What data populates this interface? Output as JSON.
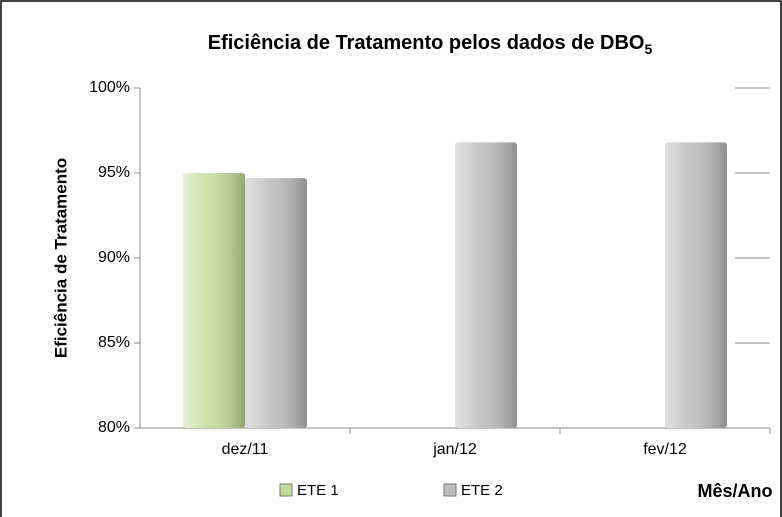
{
  "chart_data": {
    "type": "bar",
    "title": "Eficiência de Tratamento  pelos dados de DBO",
    "title_subscript": "5",
    "y_label": "Eficiência de Tratamento",
    "x_label": "Mês/Ano",
    "categories": [
      "dez/11",
      "jan/12",
      "fev/12"
    ],
    "series": [
      {
        "name": "ETE 1",
        "color": "#c4dc9a",
        "values": [
          95,
          null,
          null
        ]
      },
      {
        "name": "ETE 2",
        "color": "#bdbdbd",
        "values": [
          94.7,
          96.8,
          96.8
        ]
      }
    ],
    "ylim": [
      80,
      100
    ],
    "yticks": [
      {
        "value": 80,
        "label": "80%"
      },
      {
        "value": 85,
        "label": "85%"
      },
      {
        "value": 90,
        "label": "90%"
      },
      {
        "value": 95,
        "label": "95%"
      },
      {
        "value": 100,
        "label": "100%"
      }
    ],
    "grid": true,
    "legend": "bottom"
  }
}
